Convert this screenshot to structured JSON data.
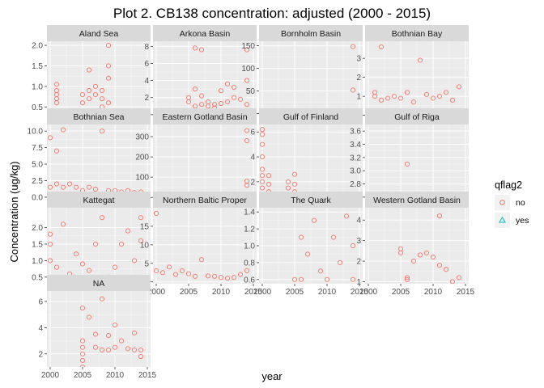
{
  "chart_data": {
    "type": "scatter",
    "title": "Plot 2. CB138 concentration: adjusted (2000 - 2015)",
    "xlabel": "year",
    "ylabel": "Concentration (ug/kg)",
    "x_ticks": [
      2000,
      2005,
      2010,
      2015
    ],
    "xlim": [
      1999.5,
      2015.5
    ],
    "legend": {
      "title": "qflag2",
      "position": "right",
      "items": [
        {
          "label": "no",
          "color": "#F8766D",
          "shape": "circle"
        },
        {
          "label": "yes",
          "color": "#00BFC4",
          "shape": "triangle"
        }
      ]
    },
    "panels": [
      {
        "name": "Aland Sea",
        "ylim": [
          0.25,
          2.1
        ],
        "y_ticks": [
          0.5,
          1.0,
          1.5,
          2.0
        ],
        "points": [
          [
            2001,
            0.6
          ],
          [
            2001,
            0.7
          ],
          [
            2001,
            0.8
          ],
          [
            2001,
            0.9
          ],
          [
            2001,
            1.05
          ],
          [
            2005,
            0.6
          ],
          [
            2005,
            0.8
          ],
          [
            2006,
            0.7
          ],
          [
            2006,
            0.9
          ],
          [
            2006,
            1.4
          ],
          [
            2007,
            0.8
          ],
          [
            2007,
            1.0
          ],
          [
            2008,
            0.5
          ],
          [
            2008,
            0.7
          ],
          [
            2008,
            0.9
          ],
          [
            2009,
            0.3
          ],
          [
            2009,
            0.6
          ],
          [
            2009,
            1.2
          ],
          [
            2009,
            1.5
          ],
          [
            2009,
            2.0
          ]
        ],
        "yes_points": []
      },
      {
        "name": "Arkona Basin",
        "ylim": [
          -0.3,
          8.6
        ],
        "y_ticks": [
          0,
          2,
          4,
          6,
          8
        ],
        "points": [
          [
            2005,
            1.5
          ],
          [
            2005,
            2.0
          ],
          [
            2006,
            1.0
          ],
          [
            2006,
            3.0
          ],
          [
            2006,
            7.8
          ],
          [
            2007,
            1.2
          ],
          [
            2007,
            2.2
          ],
          [
            2007,
            7.6
          ],
          [
            2008,
            1.0
          ],
          [
            2008,
            1.5
          ],
          [
            2009,
            0.8
          ],
          [
            2009,
            1.2
          ],
          [
            2010,
            1.3
          ],
          [
            2010,
            2.8
          ],
          [
            2011,
            3.6
          ],
          [
            2011,
            1.5
          ],
          [
            2012,
            2.0
          ],
          [
            2012,
            3.2
          ],
          [
            2013,
            1.8
          ],
          [
            2014,
            4.0
          ],
          [
            2014,
            7.6
          ],
          [
            2014,
            1.2
          ]
        ],
        "yes_points": []
      },
      {
        "name": "Bornholm Basin",
        "ylim": [
          -8,
          160
        ],
        "y_ticks": [
          0,
          50,
          100,
          150
        ],
        "points": [
          [
            2001,
            2
          ],
          [
            2002,
            2
          ],
          [
            2003,
            3
          ],
          [
            2004,
            2
          ],
          [
            2005,
            3
          ],
          [
            2006,
            2
          ],
          [
            2007,
            3
          ],
          [
            2008,
            2
          ],
          [
            2009,
            3
          ],
          [
            2010,
            4
          ],
          [
            2011,
            3
          ],
          [
            2012,
            3
          ],
          [
            2013,
            4
          ],
          [
            2014,
            52
          ],
          [
            2014,
            148
          ]
        ],
        "yes_points": [
          [
            2007,
            2
          ],
          [
            2009,
            2
          ],
          [
            2014,
            2
          ]
        ]
      },
      {
        "name": "Bothnian Bay",
        "ylim": [
          -0.1,
          3.9
        ],
        "y_ticks": [
          0,
          1,
          2,
          3
        ],
        "points": [
          [
            2001,
            1.0
          ],
          [
            2001,
            1.2
          ],
          [
            2002,
            0.8
          ],
          [
            2002,
            3.6
          ],
          [
            2003,
            0.9
          ],
          [
            2004,
            1.0
          ],
          [
            2005,
            0.9
          ],
          [
            2006,
            1.2
          ],
          [
            2007,
            0.7
          ],
          [
            2008,
            2.9
          ],
          [
            2009,
            1.1
          ],
          [
            2010,
            0.9
          ],
          [
            2011,
            1.0
          ],
          [
            2012,
            1.2
          ],
          [
            2013,
            0.8
          ],
          [
            2014,
            1.5
          ]
        ],
        "yes_points": [
          [
            2010,
            0.1
          ],
          [
            2013,
            0.1
          ]
        ]
      },
      {
        "name": "Bothnian Sea",
        "ylim": [
          -0.5,
          11
        ],
        "y_ticks": [
          0.0,
          2.5,
          5.0,
          7.5,
          10.0
        ],
        "points": [
          [
            2000,
            1.5
          ],
          [
            2000,
            9.0
          ],
          [
            2001,
            2.0
          ],
          [
            2001,
            7.0
          ],
          [
            2002,
            1.5
          ],
          [
            2002,
            10.2
          ],
          [
            2003,
            2.0
          ],
          [
            2004,
            1.5
          ],
          [
            2005,
            1.0
          ],
          [
            2006,
            1.5
          ],
          [
            2007,
            1.2
          ],
          [
            2008,
            10.0
          ],
          [
            2009,
            1.0
          ],
          [
            2010,
            1.0
          ],
          [
            2011,
            0.8
          ],
          [
            2012,
            1.0
          ],
          [
            2013,
            0.7
          ],
          [
            2014,
            0.8
          ]
        ],
        "yes_points": []
      },
      {
        "name": "Eastern Gotland Basin",
        "ylim": [
          -15,
          360
        ],
        "y_ticks": [
          0,
          100,
          200,
          300
        ],
        "points": [
          [
            2000,
            15
          ],
          [
            2001,
            12
          ],
          [
            2002,
            10
          ],
          [
            2003,
            8
          ],
          [
            2004,
            6
          ],
          [
            2005,
            5
          ],
          [
            2006,
            5
          ],
          [
            2007,
            4
          ],
          [
            2008,
            4
          ],
          [
            2009,
            3
          ],
          [
            2010,
            3
          ],
          [
            2011,
            3
          ],
          [
            2012,
            4
          ],
          [
            2013,
            10
          ],
          [
            2014,
            60
          ],
          [
            2014,
            80
          ],
          [
            2014,
            280
          ],
          [
            2014,
            330
          ]
        ],
        "yes_points": [
          [
            2006,
            2
          ],
          [
            2011,
            2
          ],
          [
            2013,
            2
          ]
        ]
      },
      {
        "name": "Gulf of Finland",
        "ylim": [
          0.5,
          6.6
        ],
        "y_ticks": [
          2,
          4,
          6
        ],
        "points": [
          [
            2000,
            1.0
          ],
          [
            2000,
            1.5
          ],
          [
            2000,
            2.0
          ],
          [
            2000,
            2.5
          ],
          [
            2000,
            3.0
          ],
          [
            2000,
            4.0
          ],
          [
            2000,
            5.0
          ],
          [
            2000,
            5.8
          ],
          [
            2000,
            6.2
          ],
          [
            2001,
            1.2
          ],
          [
            2001,
            1.8
          ],
          [
            2001,
            2.5
          ],
          [
            2004,
            1.0
          ],
          [
            2004,
            1.5
          ],
          [
            2004,
            2.0
          ],
          [
            2005,
            1.2
          ],
          [
            2005,
            1.8
          ],
          [
            2005,
            2.6
          ],
          [
            2005,
            1.0
          ]
        ],
        "yes_points": []
      },
      {
        "name": "Gulf of Riga",
        "ylim": [
          2.55,
          3.7
        ],
        "y_ticks": [
          2.6,
          2.8,
          3.0,
          3.2,
          3.4,
          3.6
        ],
        "points": [
          [
            2006,
            3.1
          ]
        ],
        "yes_points": []
      },
      {
        "name": "Kattegat",
        "ylim": [
          0.3,
          2.6
        ],
        "y_ticks": [
          0.5,
          1.0,
          1.5,
          2.0
        ],
        "points": [
          [
            2000,
            1.0
          ],
          [
            2000,
            1.5
          ],
          [
            2000,
            1.8
          ],
          [
            2001,
            0.8
          ],
          [
            2002,
            2.1
          ],
          [
            2003,
            0.6
          ],
          [
            2004,
            1.2
          ],
          [
            2005,
            0.9
          ],
          [
            2006,
            0.7
          ],
          [
            2007,
            1.5
          ],
          [
            2008,
            2.3
          ],
          [
            2009,
            0.5
          ],
          [
            2010,
            0.8
          ],
          [
            2011,
            1.5
          ],
          [
            2012,
            1.9
          ],
          [
            2013,
            1.0
          ],
          [
            2014,
            1.6
          ],
          [
            2014,
            2.3
          ]
        ],
        "yes_points": []
      },
      {
        "name": "Northern Baltic Proper",
        "ylim": [
          -0.5,
          20
        ],
        "y_ticks": [
          0,
          5,
          10,
          15
        ],
        "points": [
          [
            2000,
            3.0
          ],
          [
            2000,
            18.5
          ],
          [
            2001,
            2.5
          ],
          [
            2002,
            4.0
          ],
          [
            2003,
            2.0
          ],
          [
            2004,
            3.0
          ],
          [
            2005,
            2.2
          ],
          [
            2006,
            1.5
          ],
          [
            2007,
            6.0
          ],
          [
            2008,
            1.6
          ],
          [
            2009,
            1.5
          ],
          [
            2010,
            1.2
          ],
          [
            2011,
            1.0
          ],
          [
            2012,
            1.2
          ],
          [
            2013,
            2.0
          ],
          [
            2014,
            3.0
          ]
        ],
        "yes_points": []
      },
      {
        "name": "The Quark",
        "ylim": [
          0.55,
          1.45
        ],
        "y_ticks": [
          0.6,
          0.8,
          1.0,
          1.2,
          1.4
        ],
        "points": [
          [
            2005,
            0.6
          ],
          [
            2006,
            1.1
          ],
          [
            2006,
            0.6
          ],
          [
            2007,
            0.9
          ],
          [
            2008,
            1.3
          ],
          [
            2009,
            0.7
          ],
          [
            2010,
            0.6
          ],
          [
            2011,
            1.1
          ],
          [
            2012,
            0.8
          ],
          [
            2013,
            1.35
          ],
          [
            2014,
            0.6
          ],
          [
            2014,
            1.0
          ]
        ],
        "yes_points": []
      },
      {
        "name": "Western Gotland Basin",
        "ylim": [
          0.9,
          4.6
        ],
        "y_ticks": [
          1,
          2,
          3,
          4
        ],
        "points": [
          [
            2005,
            2.6
          ],
          [
            2005,
            2.4
          ],
          [
            2006,
            1.2
          ],
          [
            2006,
            1.1
          ],
          [
            2007,
            2.0
          ],
          [
            2008,
            2.3
          ],
          [
            2009,
            2.4
          ],
          [
            2010,
            2.2
          ],
          [
            2011,
            4.2
          ],
          [
            2011,
            1.8
          ],
          [
            2012,
            1.6
          ],
          [
            2013,
            1.0
          ],
          [
            2014,
            1.2
          ]
        ],
        "yes_points": []
      },
      {
        "name": "NA",
        "ylim": [
          1.0,
          6.8
        ],
        "y_ticks": [
          2,
          4,
          6
        ],
        "points": [
          [
            2005,
            1.0
          ],
          [
            2005,
            1.5
          ],
          [
            2005,
            2.0
          ],
          [
            2005,
            2.5
          ],
          [
            2005,
            3.0
          ],
          [
            2005,
            5.5
          ],
          [
            2006,
            4.8
          ],
          [
            2007,
            2.5
          ],
          [
            2007,
            3.5
          ],
          [
            2008,
            2.3
          ],
          [
            2008,
            6.2
          ],
          [
            2009,
            2.3
          ],
          [
            2009,
            3.4
          ],
          [
            2010,
            4.2
          ],
          [
            2010,
            2.5
          ],
          [
            2011,
            3.0
          ],
          [
            2012,
            2.4
          ],
          [
            2013,
            2.3
          ],
          [
            2013,
            3.6
          ],
          [
            2014,
            1.8
          ],
          [
            2014,
            2.3
          ]
        ],
        "yes_points": []
      }
    ]
  }
}
